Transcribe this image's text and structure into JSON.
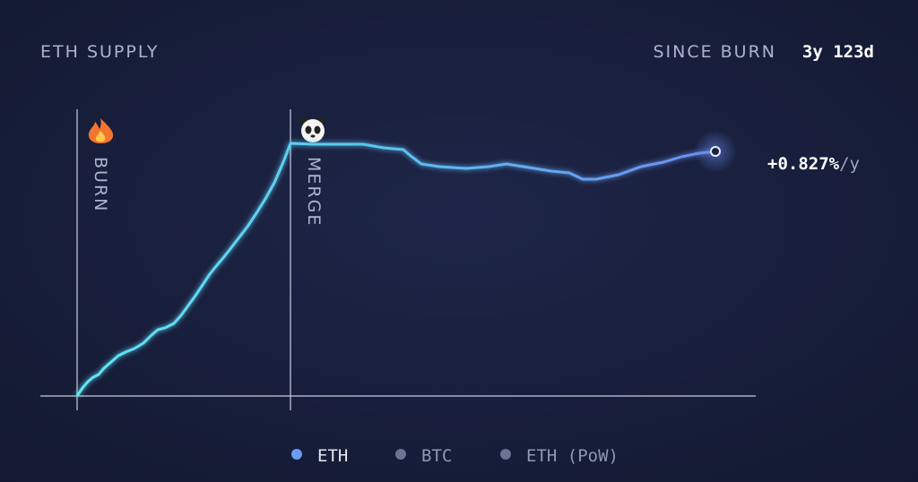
{
  "header": {
    "title": "ETH SUPPLY",
    "since_label": "SINCE BURN",
    "since_value": "3y 123d"
  },
  "chart": {
    "markers": [
      "BURN",
      "MERGE"
    ],
    "rate": "+0.827%",
    "rate_unit": "/y"
  },
  "legend": [
    "ETH",
    "BTC",
    "ETH (PoW)"
  ]
}
